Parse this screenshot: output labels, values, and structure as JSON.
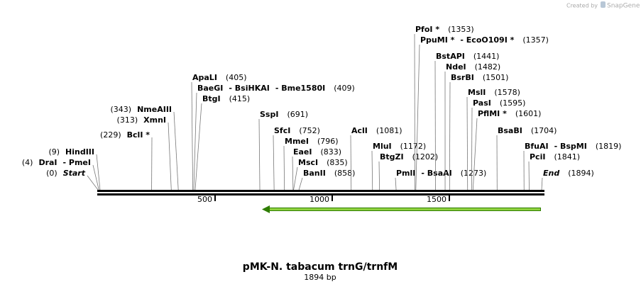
{
  "credit": "Created by",
  "brand": "SnapGene",
  "map": {
    "length": 1894,
    "ticks": [
      500,
      1000,
      1500
    ],
    "sites": [
      {
        "names": [
          "Start"
        ],
        "position": 0,
        "position_label": "(0)"
      },
      {
        "names": [
          "DraI",
          "- PmeI"
        ],
        "position": 4,
        "position_label": "(4)"
      },
      {
        "names": [
          "HindIII"
        ],
        "position": 9,
        "position_label": "(9)"
      },
      {
        "names": [
          "BclI *"
        ],
        "position": 229,
        "position_label": "(229)"
      },
      {
        "names": [
          "XmnI"
        ],
        "position": 313,
        "position_label": "(313)"
      },
      {
        "names": [
          "NmeAIII"
        ],
        "position": 343,
        "position_label": "(343)"
      },
      {
        "names": [
          "ApaLI"
        ],
        "position": 405,
        "position_label": "(405)"
      },
      {
        "names": [
          "BaeGI",
          "- BsiHKAI",
          "- Bme1580I"
        ],
        "position": 409,
        "position_label": "(409)"
      },
      {
        "names": [
          "BtgI"
        ],
        "position": 415,
        "position_label": "(415)"
      },
      {
        "names": [
          "SspI"
        ],
        "position": 691,
        "position_label": "(691)"
      },
      {
        "names": [
          "SfcI"
        ],
        "position": 752,
        "position_label": "(752)"
      },
      {
        "names": [
          "MmeI"
        ],
        "position": 796,
        "position_label": "(796)"
      },
      {
        "names": [
          "EaeI"
        ],
        "position": 833,
        "position_label": "(833)"
      },
      {
        "names": [
          "MscI"
        ],
        "position": 835,
        "position_label": "(835)"
      },
      {
        "names": [
          "BanII"
        ],
        "position": 858,
        "position_label": "(858)"
      },
      {
        "names": [
          "AclI"
        ],
        "position": 1081,
        "position_label": "(1081)"
      },
      {
        "names": [
          "MluI"
        ],
        "position": 1172,
        "position_label": "(1172)"
      },
      {
        "names": [
          "BtgZI"
        ],
        "position": 1202,
        "position_label": "(1202)"
      },
      {
        "names": [
          "PmlI",
          "- BsaAI"
        ],
        "position": 1273,
        "position_label": "(1273)"
      },
      {
        "names": [
          "PfoI *"
        ],
        "position": 1353,
        "position_label": "(1353)"
      },
      {
        "names": [
          "PpuMI *",
          "- EcoO109I *"
        ],
        "position": 1357,
        "position_label": "(1357)"
      },
      {
        "names": [
          "BstAPI"
        ],
        "position": 1441,
        "position_label": "(1441)"
      },
      {
        "names": [
          "NdeI"
        ],
        "position": 1482,
        "position_label": "(1482)"
      },
      {
        "names": [
          "BsrBI"
        ],
        "position": 1501,
        "position_label": "(1501)"
      },
      {
        "names": [
          "MslI"
        ],
        "position": 1578,
        "position_label": "(1578)"
      },
      {
        "names": [
          "PasI"
        ],
        "position": 1595,
        "position_label": "(1595)"
      },
      {
        "names": [
          "PflMI *"
        ],
        "position": 1601,
        "position_label": "(1601)"
      },
      {
        "names": [
          "BsaBI"
        ],
        "position": 1704,
        "position_label": "(1704)"
      },
      {
        "names": [
          "BfuAI",
          "- BspMI"
        ],
        "position": 1819,
        "position_label": "(1819)"
      },
      {
        "names": [
          "PciI"
        ],
        "position": 1841,
        "position_label": "(1841)"
      },
      {
        "names": [
          "End"
        ],
        "position": 1894,
        "position_label": "(1894)"
      }
    ]
  },
  "title": "pMK-N. tabacum trnG/trnfM",
  "subtitle": "1894 bp"
}
